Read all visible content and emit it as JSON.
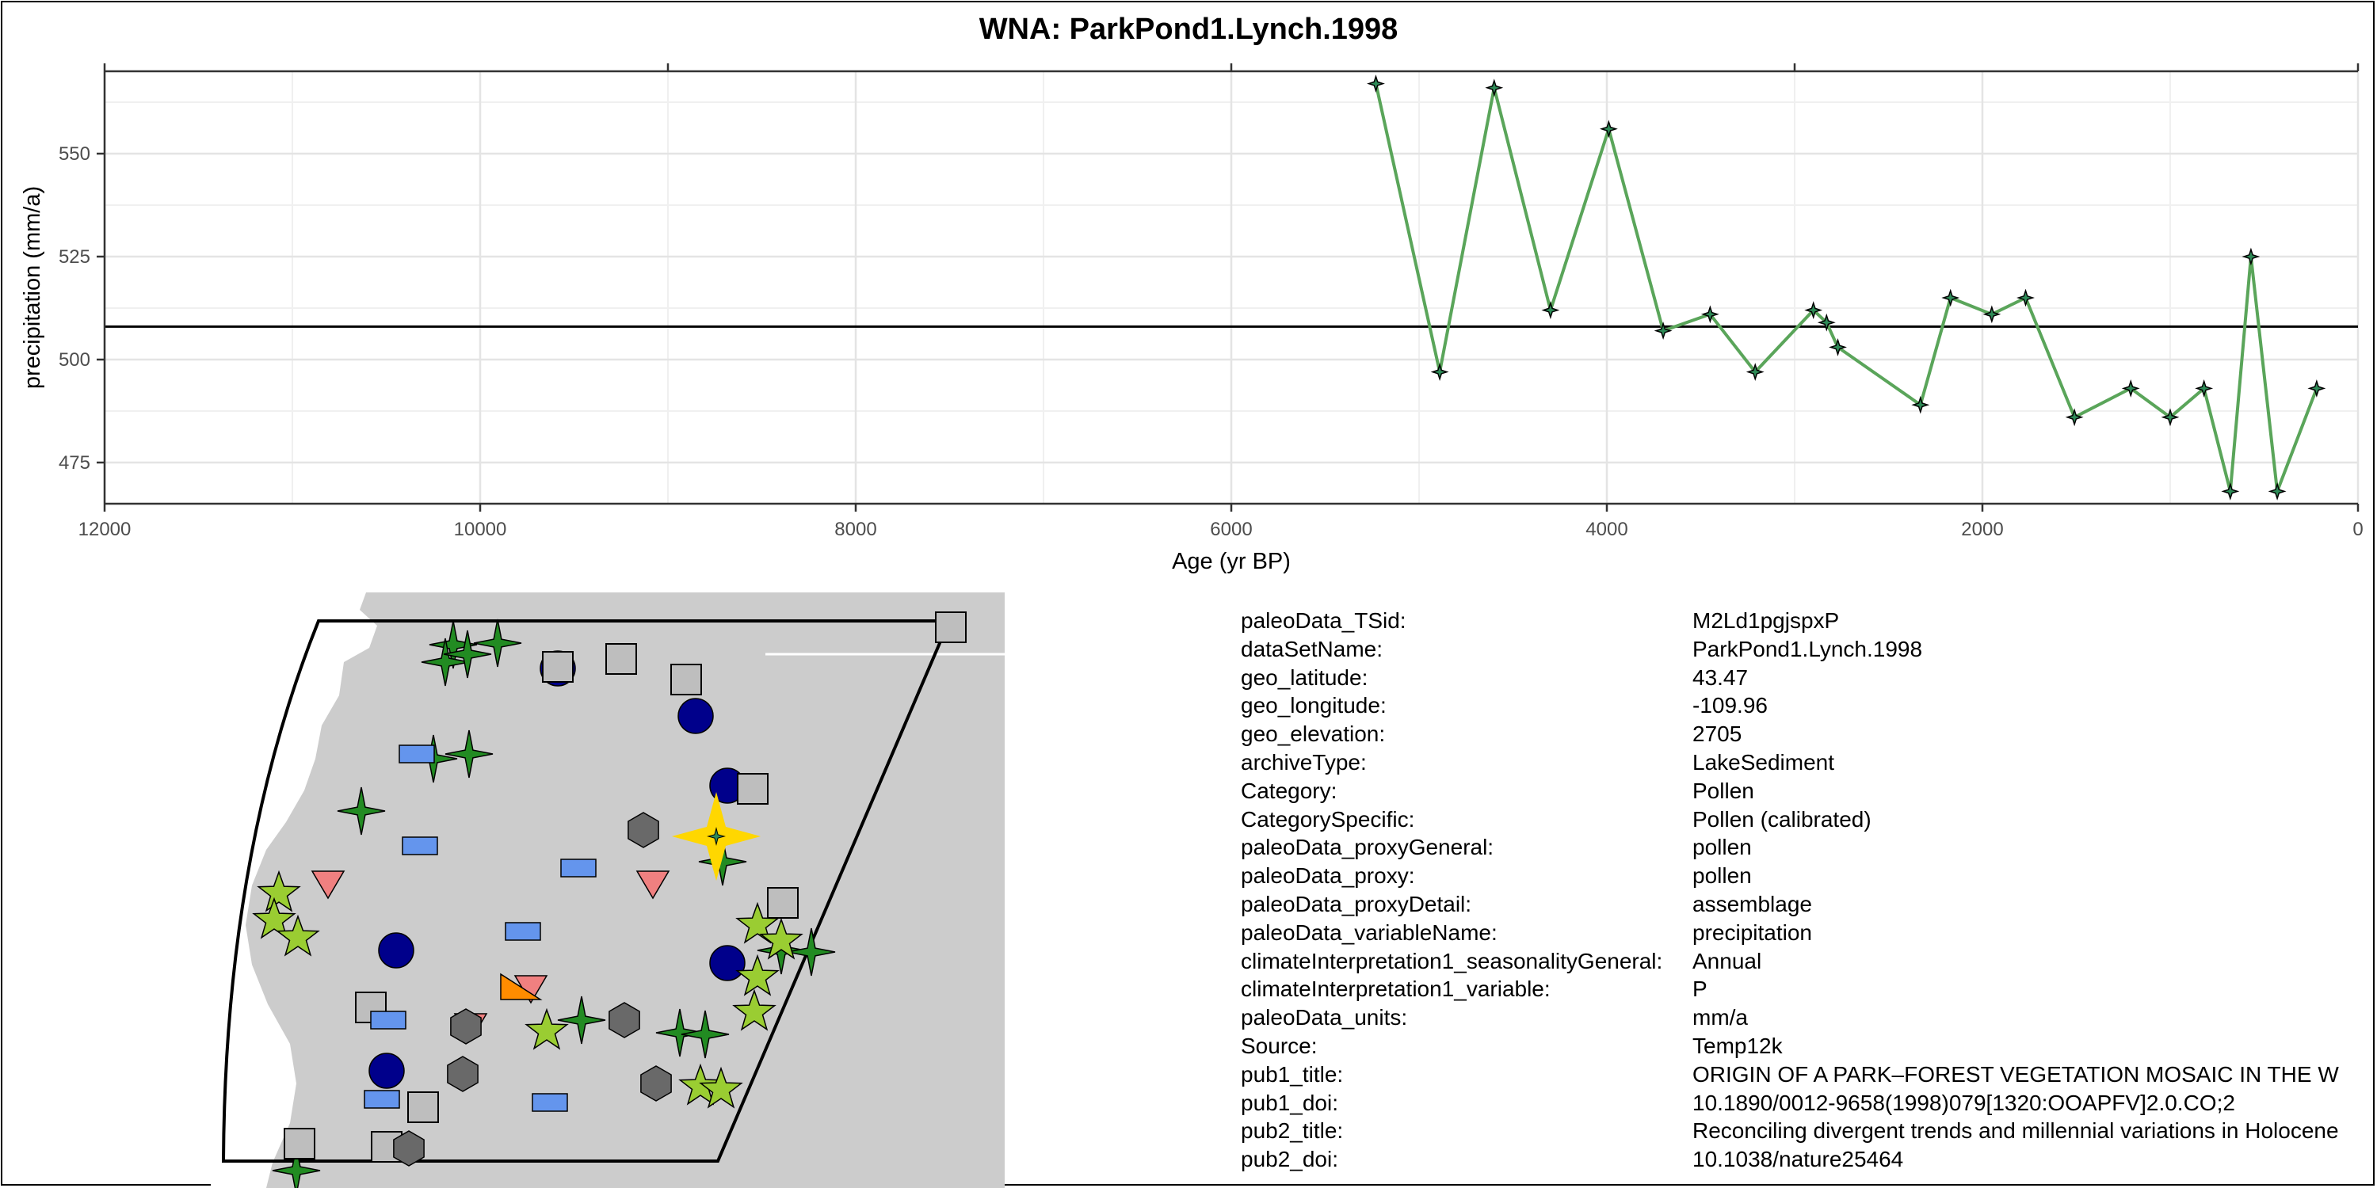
{
  "chart_data": {
    "type": "line",
    "title": "WNA: ParkPond1.Lynch.1998",
    "xlabel": "Age (yr BP)",
    "ylabel": "precipitation (mm/a)",
    "x_reversed": true,
    "xlim": [
      12000,
      0
    ],
    "ylim": [
      465,
      570
    ],
    "x_ticks": [
      12000,
      10000,
      8000,
      6000,
      4000,
      2000,
      0
    ],
    "y_ticks": [
      475,
      500,
      525,
      550
    ],
    "grid": true,
    "reference_line": 508,
    "line_color": "#5aa55a",
    "marker": "four-point-star",
    "series": [
      {
        "x": [
          5230,
          4890,
          4600,
          4300,
          3990,
          3700,
          3450,
          3210,
          2900,
          2830,
          2770,
          2330,
          2170,
          1950,
          1770,
          1510,
          1210,
          1000,
          820,
          680,
          570,
          430,
          220
        ],
        "y": [
          567,
          497,
          566,
          512,
          556,
          507,
          511,
          497,
          512,
          509,
          503,
          489,
          515,
          511,
          515,
          486,
          493,
          486,
          493,
          468,
          525,
          468,
          493
        ]
      }
    ]
  },
  "map": {
    "land_color": "#cccccc",
    "outline_color": "#000000",
    "highlight_color": "#ffd700",
    "marker_colors": {
      "green-star4": "#228b22",
      "navy-circle": "#00008b",
      "gray-square": "#bebebe",
      "blue-rect": "#6495ed",
      "pink-triangle": "#f08080",
      "hexagon": "#696969",
      "lime-star5": "#9acd32",
      "orange-triangle": "#ff8c00"
    }
  },
  "metadata": [
    {
      "key": "paleoData_TSid:",
      "value": "M2Ld1pgjspxP"
    },
    {
      "key": "dataSetName:",
      "value": "ParkPond1.Lynch.1998"
    },
    {
      "key": "geo_latitude:",
      "value": "43.47"
    },
    {
      "key": "geo_longitude:",
      "value": "-109.96"
    },
    {
      "key": "geo_elevation:",
      "value": "2705"
    },
    {
      "key": "archiveType:",
      "value": "LakeSediment"
    },
    {
      "key": "Category:",
      "value": "Pollen"
    },
    {
      "key": "CategorySpecific:",
      "value": "Pollen (calibrated)"
    },
    {
      "key": "paleoData_proxyGeneral:",
      "value": "pollen"
    },
    {
      "key": "paleoData_proxy:",
      "value": "pollen"
    },
    {
      "key": "paleoData_proxyDetail:",
      "value": "assemblage"
    },
    {
      "key": "paleoData_variableName:",
      "value": "precipitation"
    },
    {
      "key": "climateInterpretation1_seasonalityGeneral:",
      "value": "Annual"
    },
    {
      "key": "climateInterpretation1_variable:",
      "value": "P"
    },
    {
      "key": "paleoData_units:",
      "value": "mm/a"
    },
    {
      "key": "Source:",
      "value": "Temp12k"
    },
    {
      "key": "pub1_title:",
      "value": "ORIGIN OF A PARK–FOREST VEGETATION MOSAIC IN THE W"
    },
    {
      "key": "pub1_doi:",
      "value": "10.1890/0012-9658(1998)079[1320:OOAPFV]2.0.CO;2"
    },
    {
      "key": "pub2_title:",
      "value": "Reconciling divergent trends and millennial variations in Holocene"
    },
    {
      "key": "pub2_doi:",
      "value": "10.1038/nature25464"
    }
  ]
}
